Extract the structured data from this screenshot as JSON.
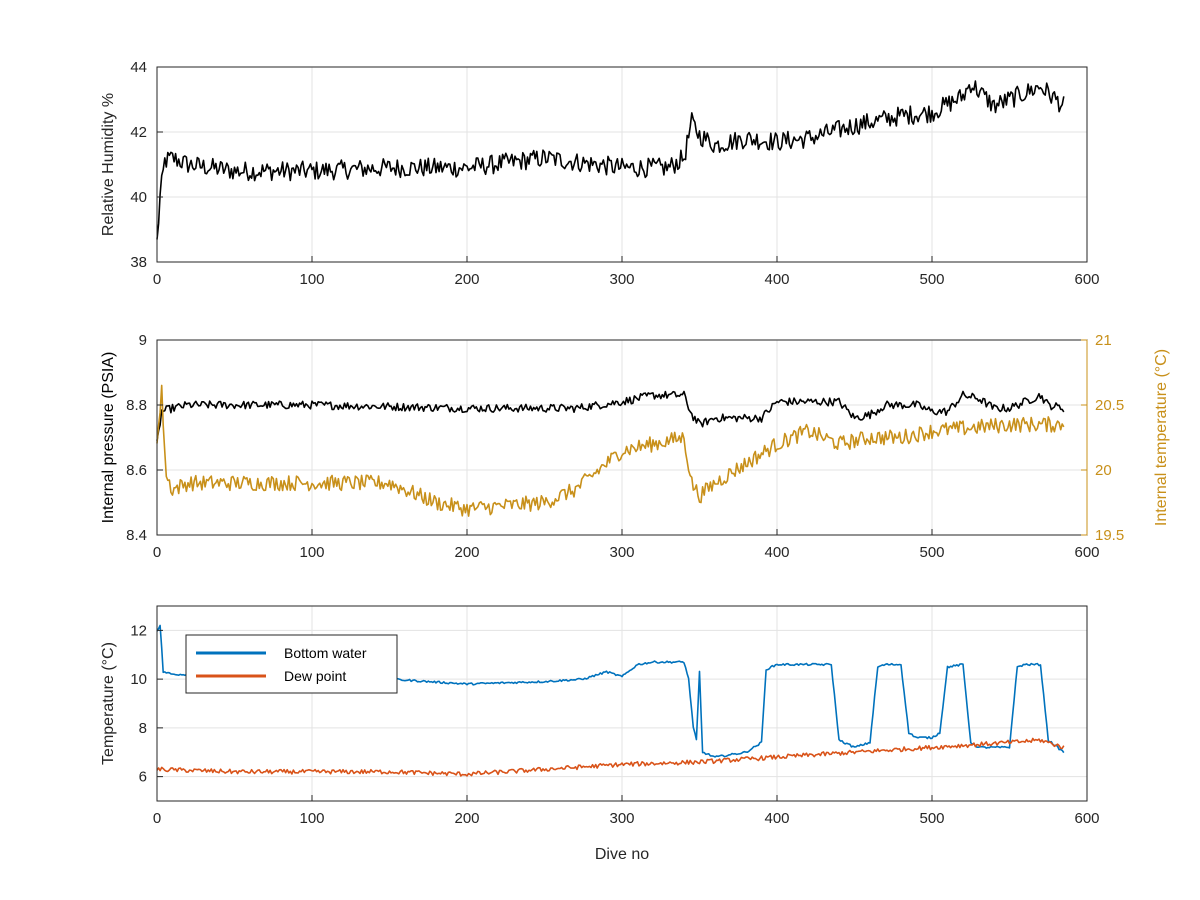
{
  "chart_data": [
    {
      "type": "line",
      "xlabel": "",
      "ylabel": "Relative Humidity %",
      "xlim": [
        0,
        600
      ],
      "ylim": [
        38,
        44
      ],
      "xticks": [
        0,
        100,
        200,
        300,
        400,
        500,
        600
      ],
      "yticks": [
        38,
        40,
        42,
        44
      ],
      "grid": true,
      "series": [
        {
          "color": "#000000",
          "x": [
            0,
            2,
            5,
            10,
            20,
            50,
            100,
            150,
            200,
            250,
            300,
            330,
            340,
            345,
            350,
            360,
            380,
            400,
            420,
            450,
            480,
            500,
            520,
            525,
            540,
            560,
            570,
            585
          ],
          "y": [
            38.6,
            40.0,
            41.1,
            41.2,
            41.0,
            40.8,
            40.8,
            40.9,
            40.9,
            41.2,
            40.9,
            40.9,
            41.2,
            42.3,
            41.9,
            41.6,
            41.8,
            41.7,
            41.8,
            42.2,
            42.5,
            42.6,
            43.1,
            43.5,
            42.8,
            43.2,
            43.4,
            42.8
          ],
          "noise": 0.6
        }
      ]
    },
    {
      "type": "line",
      "xlabel": "",
      "ylabel": "Internal pressure (PSIA)",
      "y2label": "Internal temperature (°C)",
      "xlim": [
        0,
        600
      ],
      "ylim": [
        8.4,
        9
      ],
      "y2lim": [
        19.5,
        21
      ],
      "xticks": [
        0,
        100,
        200,
        300,
        400,
        500,
        600
      ],
      "yticks": [
        8.4,
        8.6,
        8.8,
        9
      ],
      "y2ticks": [
        19.5,
        20,
        20.5,
        21
      ],
      "grid": true,
      "series": [
        {
          "axis": "left",
          "color": "#000000",
          "x": [
            0,
            3,
            10,
            20,
            100,
            200,
            270,
            300,
            320,
            340,
            345,
            350,
            360,
            390,
            400,
            440,
            450,
            460,
            470,
            490,
            500,
            510,
            520,
            530,
            540,
            550,
            570,
            575,
            585
          ],
          "y": [
            8.68,
            8.78,
            8.79,
            8.8,
            8.8,
            8.79,
            8.79,
            8.81,
            8.83,
            8.83,
            8.77,
            8.74,
            8.76,
            8.76,
            8.81,
            8.81,
            8.76,
            8.77,
            8.8,
            8.8,
            8.78,
            8.78,
            8.83,
            8.82,
            8.79,
            8.79,
            8.83,
            8.8,
            8.79
          ],
          "noise": 0.025
        },
        {
          "axis": "right",
          "color": "#C8901A",
          "x": [
            0,
            3,
            6,
            10,
            20,
            50,
            100,
            150,
            180,
            200,
            250,
            270,
            290,
            300,
            340,
            345,
            350,
            360,
            380,
            400,
            420,
            440,
            460,
            480,
            500,
            550,
            585
          ],
          "y": [
            20.2,
            20.6,
            19.95,
            19.85,
            19.9,
            19.9,
            19.9,
            19.9,
            19.75,
            19.7,
            19.75,
            19.85,
            20.05,
            20.15,
            20.25,
            19.9,
            19.8,
            19.9,
            20.05,
            20.2,
            20.3,
            20.2,
            20.25,
            20.25,
            20.3,
            20.35,
            20.35
          ],
          "noise": 0.12
        }
      ]
    },
    {
      "type": "line",
      "xlabel": "Dive no",
      "ylabel": "Temperature (°C)",
      "xlim": [
        0,
        600
      ],
      "ylim": [
        5,
        13
      ],
      "xticks": [
        0,
        100,
        200,
        300,
        400,
        500,
        600
      ],
      "yticks": [
        6,
        8,
        10,
        12
      ],
      "grid": true,
      "legend": {
        "placement": "top-left",
        "entries": [
          "Bottom water",
          "Dew point"
        ]
      },
      "series": [
        {
          "name": "Bottom water",
          "color": "#0072BD",
          "x": [
            0,
            2,
            4,
            10,
            100,
            150,
            200,
            250,
            275,
            290,
            300,
            310,
            320,
            335,
            340,
            343,
            346,
            348,
            350,
            352,
            360,
            380,
            390,
            393,
            400,
            420,
            435,
            440,
            450,
            460,
            465,
            470,
            480,
            485,
            490,
            500,
            505,
            510,
            520,
            525,
            530,
            540,
            550,
            555,
            560,
            570,
            575,
            585
          ],
          "y": [
            12.0,
            12.2,
            10.3,
            10.2,
            10.1,
            10.0,
            9.8,
            9.9,
            10.0,
            10.3,
            10.1,
            10.6,
            10.7,
            10.7,
            10.7,
            10.0,
            8.0,
            7.5,
            10.3,
            7.0,
            6.8,
            7.0,
            7.4,
            10.4,
            10.6,
            10.6,
            10.6,
            7.5,
            7.2,
            7.4,
            10.5,
            10.6,
            10.6,
            7.8,
            7.6,
            7.6,
            7.8,
            10.5,
            10.6,
            7.4,
            7.2,
            7.2,
            7.2,
            10.5,
            10.6,
            10.6,
            7.5,
            7.0
          ],
          "noise": 0.08
        },
        {
          "name": "Dew point",
          "color": "#D95319",
          "x": [
            0,
            50,
            100,
            150,
            200,
            250,
            300,
            350,
            400,
            450,
            500,
            550,
            570,
            585
          ],
          "y": [
            6.3,
            6.2,
            6.2,
            6.2,
            6.1,
            6.3,
            6.5,
            6.6,
            6.8,
            7.0,
            7.2,
            7.4,
            7.5,
            7.2
          ],
          "noise": 0.18
        }
      ]
    }
  ]
}
